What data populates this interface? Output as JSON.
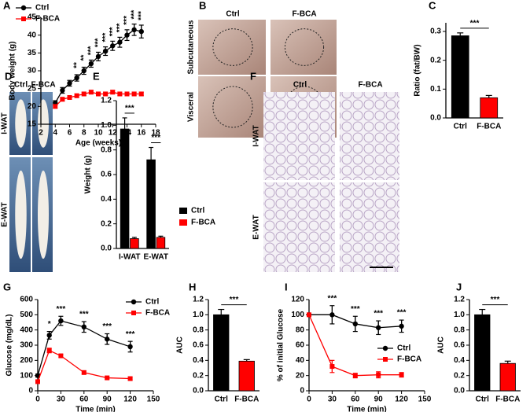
{
  "chart_data": [
    {
      "panel": "A",
      "type": "line",
      "xlabel": "Age (weeks)",
      "ylabel": "Body weight (g)",
      "x": [
        4,
        5,
        6,
        7,
        8,
        9,
        10,
        11,
        12,
        13,
        14,
        15,
        16
      ],
      "series": [
        {
          "name": "Ctrl",
          "color": "#000000",
          "marker": "circle",
          "values": [
            21,
            24.5,
            26.5,
            28,
            30,
            32,
            34,
            35.5,
            37,
            38,
            40,
            41.5,
            41
          ],
          "errors": [
            0.6,
            0.8,
            0.8,
            0.9,
            1,
            1,
            1.2,
            1.2,
            1.3,
            1.4,
            1.5,
            1.6,
            1.8
          ]
        },
        {
          "name": "F-BCA",
          "color": "#ff0000",
          "marker": "square",
          "values": [
            20,
            22,
            22.5,
            23,
            23.5,
            24,
            23.5,
            23.5,
            24,
            23.5,
            23.5,
            23.5,
            23.5
          ],
          "errors": [
            0.5,
            0.5,
            0.5,
            0.5,
            0.5,
            0.5,
            0.5,
            0.5,
            0.5,
            0.5,
            0.5,
            0.5,
            0.5
          ]
        }
      ],
      "xlim": [
        2,
        18
      ],
      "xticks": [
        2,
        4,
        6,
        8,
        10,
        12,
        14,
        16,
        18
      ],
      "ylim": [
        15,
        45
      ],
      "yticks": [
        15,
        20,
        25,
        30,
        35,
        40,
        45
      ],
      "legend": "top-left",
      "annotations": [
        {
          "x": 7,
          "text": "**"
        },
        {
          "x": 8,
          "text": "**"
        },
        {
          "x": 9,
          "text": "***"
        },
        {
          "x": 10,
          "text": "***"
        },
        {
          "x": 11,
          "text": "***"
        },
        {
          "x": 12,
          "text": "***"
        },
        {
          "x": 13,
          "text": "***"
        },
        {
          "x": 14,
          "text": "***"
        },
        {
          "x": 15,
          "text": "***"
        },
        {
          "x": 16,
          "text": "***"
        }
      ]
    },
    {
      "panel": "C",
      "type": "bar",
      "ylabel": "Ratio (fat/BW)",
      "categories": [
        "Ctrl",
        "F-BCA"
      ],
      "values": [
        0.285,
        0.07
      ],
      "errors": [
        0.01,
        0.008
      ],
      "colors": [
        "#000000",
        "#ff0000"
      ],
      "ylim": [
        0,
        0.33
      ],
      "yticks": [
        {
          "value": 0,
          "label": "0.0"
        },
        0.1,
        0.2,
        0.3
      ],
      "significance": "***"
    },
    {
      "panel": "E",
      "type": "grouped-bar",
      "ylabel": "Weight (g)",
      "categories": [
        "I-WAT",
        "E-WAT"
      ],
      "series": [
        {
          "name": "Ctrl",
          "color": "#000000",
          "values": [
            0.97,
            0.72
          ],
          "errors": [
            0.09,
            0.1
          ]
        },
        {
          "name": "F-BCA",
          "color": "#ff0000",
          "values": [
            0.08,
            0.09
          ],
          "errors": [
            0.01,
            0.01
          ]
        }
      ],
      "ylim": [
        0,
        1.2
      ],
      "yticks": [
        {
          "value": 0,
          "label": "0.0"
        },
        0.2,
        0.4,
        0.6,
        0.8,
        {
          "value": 1,
          "label": "1.0"
        },
        1.2
      ],
      "significance": [
        "***",
        "***"
      ],
      "legend": "outside-right"
    },
    {
      "panel": "G",
      "type": "line",
      "xlabel": "Time (min)",
      "ylabel": "Glucose (mg/dL)",
      "x": [
        0,
        15,
        30,
        60,
        90,
        120
      ],
      "series": [
        {
          "name": "Ctrl",
          "color": "#000000",
          "marker": "circle",
          "values": [
            100,
            365,
            460,
            420,
            340,
            290
          ],
          "errors": [
            10,
            25,
            30,
            35,
            35,
            35
          ]
        },
        {
          "name": "F-BCA",
          "color": "#ff0000",
          "marker": "square",
          "values": [
            60,
            265,
            230,
            120,
            85,
            80
          ],
          "errors": [
            10,
            15,
            10,
            10,
            8,
            8
          ]
        }
      ],
      "xlim": [
        0,
        150
      ],
      "xticks": [
        0,
        30,
        60,
        90,
        120,
        150
      ],
      "ylim": [
        0,
        600
      ],
      "yticks": [
        0,
        100,
        200,
        300,
        400,
        500,
        600
      ],
      "legend": "top-right",
      "annotations": [
        {
          "x": 15,
          "text": "*"
        },
        {
          "x": 30,
          "text": "***"
        },
        {
          "x": 60,
          "text": "***"
        },
        {
          "x": 90,
          "text": "***"
        },
        {
          "x": 120,
          "text": "***"
        }
      ]
    },
    {
      "panel": "H",
      "type": "bar",
      "ylabel": "AUC",
      "categories": [
        "Ctrl",
        "F-BCA"
      ],
      "values": [
        1.0,
        0.39
      ],
      "errors": [
        0.07,
        0.02
      ],
      "colors": [
        "#000000",
        "#ff0000"
      ],
      "ylim": [
        0,
        1.2
      ],
      "yticks": [
        {
          "value": 0,
          "label": "0.0"
        },
        0.2,
        0.4,
        0.6,
        0.8,
        {
          "value": 1,
          "label": "1.0"
        },
        1.2
      ],
      "significance": "***"
    },
    {
      "panel": "I",
      "type": "line",
      "xlabel": "Time (min)",
      "ylabel": "% of initial Glucose",
      "x": [
        0,
        30,
        60,
        90,
        120
      ],
      "series": [
        {
          "name": "Ctrl",
          "color": "#000000",
          "marker": "circle",
          "values": [
            100,
            100,
            88,
            83,
            85
          ],
          "errors": [
            0,
            12,
            10,
            9,
            8
          ]
        },
        {
          "name": "F-BCA",
          "color": "#ff0000",
          "marker": "square",
          "values": [
            100,
            32,
            20,
            21,
            21
          ],
          "errors": [
            0,
            8,
            3,
            4,
            3
          ]
        }
      ],
      "xlim": [
        0,
        150
      ],
      "xticks": [
        0,
        30,
        60,
        90,
        120,
        150
      ],
      "ylim": [
        0,
        120
      ],
      "yticks": [
        0,
        20,
        40,
        60,
        80,
        100,
        120
      ],
      "legend": "center-right",
      "annotations": [
        {
          "x": 30,
          "text": "***"
        },
        {
          "x": 60,
          "text": "***"
        },
        {
          "x": 90,
          "text": "***"
        },
        {
          "x": 120,
          "text": "***"
        }
      ]
    },
    {
      "panel": "J",
      "type": "bar",
      "ylabel": "AUC",
      "categories": [
        "Ctrl",
        "F-BCA"
      ],
      "values": [
        1.0,
        0.36
      ],
      "errors": [
        0.07,
        0.03
      ],
      "colors": [
        "#000000",
        "#ff0000"
      ],
      "ylim": [
        0,
        1.2
      ],
      "yticks": [
        {
          "value": 0,
          "label": "0.0"
        },
        0.2,
        0.4,
        0.6,
        0.8,
        {
          "value": 1,
          "label": "1.0"
        },
        1.2
      ],
      "significance": "***"
    }
  ],
  "images": [
    {
      "panel": "B",
      "columns": [
        "Ctrl",
        "F-BCA"
      ],
      "rows": [
        "Subcutaneous",
        "Visceral"
      ]
    },
    {
      "panel": "D",
      "columns": [
        "Ctrl",
        "F-BCA"
      ],
      "rows": [
        "I-WAT",
        "E-WAT"
      ]
    },
    {
      "panel": "F",
      "columns": [
        "Ctrl",
        "F-BCA"
      ],
      "rows": [
        "I-WAT",
        "E-WAT"
      ]
    }
  ]
}
